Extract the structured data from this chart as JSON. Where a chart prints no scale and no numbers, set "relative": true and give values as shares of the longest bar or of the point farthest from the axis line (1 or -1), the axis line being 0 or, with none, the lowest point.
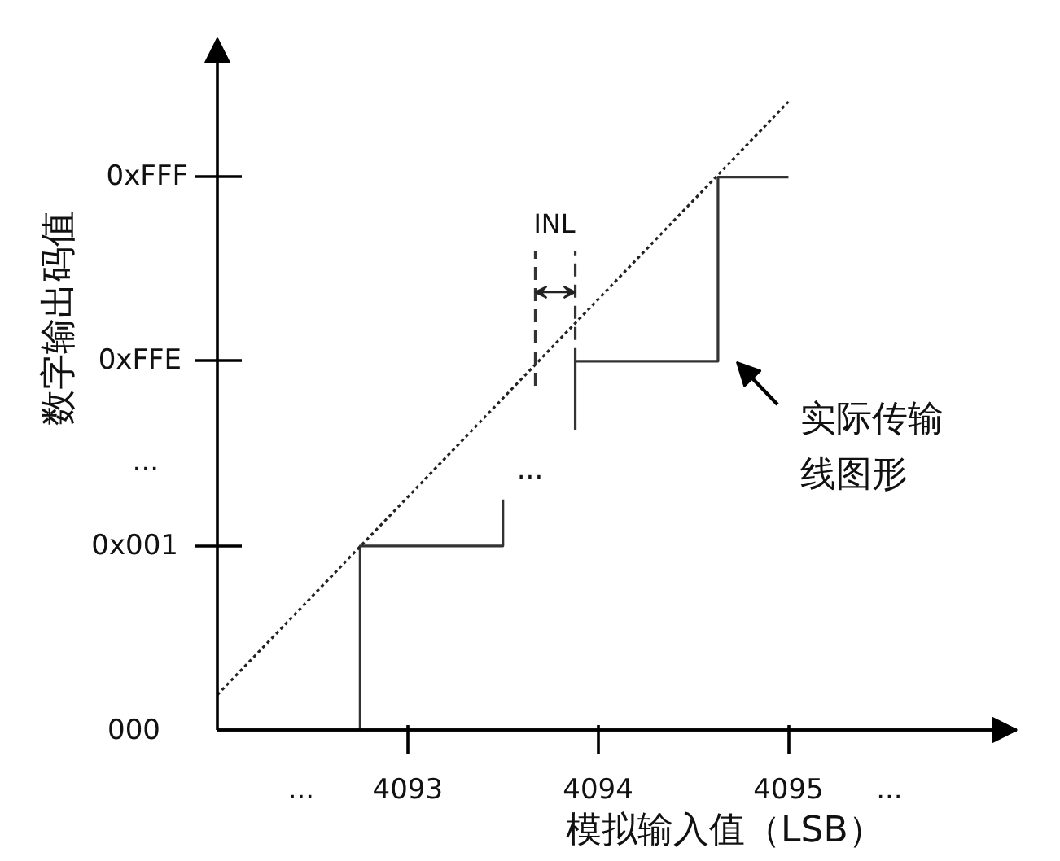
{
  "chart_data": {
    "type": "line",
    "relative": true,
    "xlabel": "模拟输入值（LSB）",
    "ylabel": "数字输出码值",
    "xlim": [
      4092,
      4096.2
    ],
    "xticks": [
      {
        "value": 4092.44,
        "label": "..."
      },
      4093,
      4094,
      4095,
      {
        "value": 4095.53,
        "label": "..."
      }
    ],
    "series": [
      {
        "color": "#333333",
        "line_style": "solid",
        "x": [
          4092.75,
          4092.75,
          4093.5,
          4093.5,
          4093.7,
          4093.88,
          4093.88,
          4094.63,
          4094.63,
          4095
        ],
        "values": [
          0,
          0.293,
          0.293,
          0.367,
          null,
          0.478,
          0.587,
          0.587,
          0.88,
          0.88
        ]
      },
      {
        "color": "#222222",
        "line_style": "dotted",
        "x": [
          4092,
          4095
        ],
        "values": [
          0.056,
          1
        ]
      },
      {
        "color": "#333333",
        "line_style": "dashed",
        "x": [
          4093.67,
          4093.67
        ],
        "values": [
          0.548,
          0.762
        ]
      },
      {
        "color": "#333333",
        "line_style": "dashed",
        "x": [
          4093.88,
          4093.88
        ],
        "values": [
          0.587,
          0.762
        ]
      }
    ],
    "annotations": [
      "000",
      "0x001",
      "...",
      "0xFFE",
      "0xFFF",
      "INL",
      "实际传输线图形",
      "..."
    ]
  }
}
